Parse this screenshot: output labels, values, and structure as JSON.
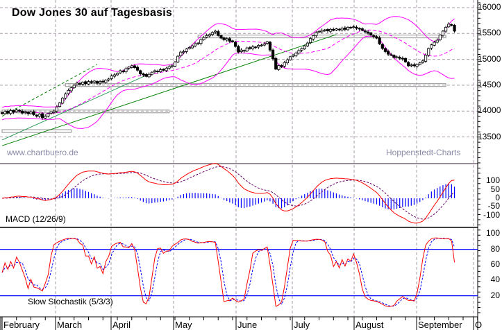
{
  "title": "Dow Jones 30 auf Tagesbasis",
  "watermark_left": "www.chartbuero.de",
  "watermark_right": "Hoppenstedt-Charts",
  "macd_label": "MACD (12/26/9)",
  "stoch_label": "Slow Stochastik (5/3/3)",
  "colors": {
    "bollinger": "#ff00ff",
    "trendline": "#008000",
    "trendline_thin": "#2e9a5a",
    "macd_line": "#ff0000",
    "macd_signal": "#660066",
    "macd_histogram": "#0000ff",
    "stoch_k": "#ff0000",
    "stoch_d": "#0000ff",
    "stoch_levels": "#0000ff",
    "grid": "#a89aa8",
    "zone_box": "#a0a0a0"
  },
  "chart_data": [
    {
      "type": "candlestick",
      "title": "Dow Jones 30 auf Tagesbasis",
      "ylim": [
        12970,
        16150
      ],
      "y_ticks": [
        "16000",
        "15500",
        "15000",
        "14500",
        "14000",
        "13500"
      ],
      "grid": true,
      "closes": [
        13950,
        13990,
        13960,
        14010,
        13980,
        14020,
        14000,
        13960,
        13990,
        13950,
        13980,
        13930,
        13900,
        13940,
        13870,
        13900,
        13950,
        13980,
        14000,
        14080,
        14160,
        14250,
        14330,
        14400,
        14450,
        14500,
        14540,
        14520,
        14560,
        14530,
        14570,
        14550,
        14580,
        14540,
        14570,
        14560,
        14600,
        14620,
        14680,
        14700,
        14730,
        14780,
        14760,
        14820,
        14850,
        14875,
        14840,
        14790,
        14720,
        14700,
        14670,
        14710,
        14750,
        14780,
        14760,
        14800,
        14790,
        14830,
        14860,
        14875,
        14950,
        15060,
        15140,
        15150,
        15200,
        15230,
        15260,
        15300,
        15315,
        15380,
        15420,
        15460,
        15480,
        15520,
        15545,
        15460,
        15410,
        15380,
        15400,
        15350,
        15340,
        15250,
        15140,
        15180,
        15160,
        15220,
        15210,
        15240,
        15230,
        15270,
        15275,
        15300,
        15340,
        15180,
        15010,
        14810,
        14880,
        14860,
        14940,
        14990,
        15050,
        15080,
        15120,
        15170,
        15210,
        15260,
        15315,
        15400,
        15460,
        15520,
        15540,
        15560,
        15570,
        15550,
        15580,
        15560,
        15590,
        15570,
        15600,
        15580,
        15620,
        15610,
        15630,
        15600,
        15585,
        15560,
        15530,
        15505,
        15470,
        15440,
        15410,
        15300,
        15210,
        15150,
        15100,
        15080,
        15035,
        15050,
        15020,
        15010,
        14950,
        14875,
        14890,
        14875,
        14900,
        14930,
        14970,
        15080,
        15210,
        15280,
        15330,
        15370,
        15470,
        15545,
        15620,
        15680,
        15660,
        15545
      ],
      "overlays": {
        "bollinger_bands": {
          "period": 20,
          "std": 2
        },
        "zones": [
          {
            "from_day": 68,
            "to_day": 154,
            "low": 15420,
            "high": 15470
          },
          {
            "from_day": 22,
            "to_day": 154,
            "low": 14480,
            "high": 14530
          },
          {
            "from_day": 0,
            "to_day": 58,
            "low": 13990,
            "high": 14020
          },
          {
            "from_day": 0,
            "to_day": 24,
            "low": 13600,
            "high": 13640
          }
        ],
        "trendlines": [
          {
            "style": "solid",
            "from": [
              0,
              13330
            ],
            "to": [
              116,
              15480
            ]
          },
          {
            "style": "thin",
            "from": [
              0,
              13440
            ],
            "to": [
              50,
              14690
            ]
          },
          {
            "style": "dashed",
            "from": [
              0,
              13900
            ],
            "to": [
              33,
              14900
            ]
          }
        ]
      }
    },
    {
      "type": "line",
      "title": "MACD (12/26/9)",
      "ylim": [
        -160,
        200
      ],
      "y_ticks": [
        "100",
        "50",
        "0",
        "-50",
        "-100"
      ],
      "series": [
        "MACD",
        "Signal",
        "Histogram"
      ]
    },
    {
      "type": "line",
      "title": "Slow Stochastik (5/3/3)",
      "ylim": [
        -7,
        107
      ],
      "y_ticks": [
        "100",
        "80",
        "60",
        "40",
        "20"
      ],
      "levels": [
        80,
        20
      ],
      "series": [
        "%K",
        "%D"
      ]
    }
  ],
  "x_axis": {
    "months": [
      "February",
      "March",
      "April",
      "May",
      "June",
      "July",
      "August",
      "September",
      "O"
    ]
  }
}
